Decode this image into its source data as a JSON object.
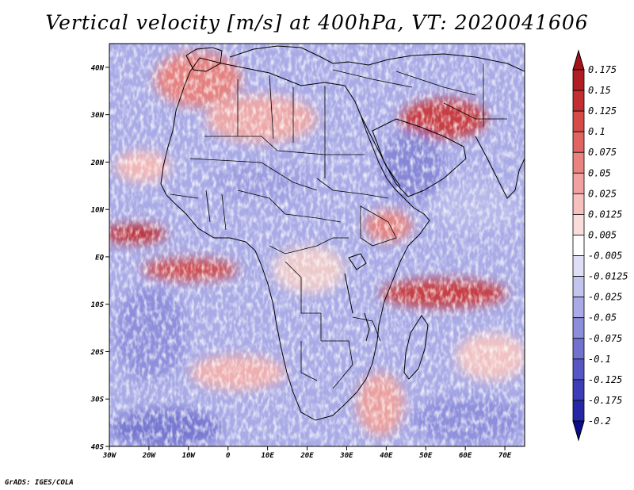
{
  "title": "Vertical velocity [m/s] at 400hPa, VT: 2020041606",
  "credit": "GrADS: IGES/COLA",
  "map": {
    "lat_labels": [
      "40N",
      "30N",
      "20N",
      "10N",
      "EQ",
      "10S",
      "20S",
      "30S",
      "40S"
    ],
    "lat_values": [
      40,
      30,
      20,
      10,
      0,
      -10,
      -20,
      -30,
      -40
    ],
    "lon_labels": [
      "30W",
      "20W",
      "10W",
      "0",
      "10E",
      "20E",
      "30E",
      "40E",
      "50E",
      "60E",
      "70E"
    ],
    "lon_values": [
      -30,
      -20,
      -10,
      0,
      10,
      20,
      30,
      40,
      50,
      60,
      70
    ],
    "lon_range": [
      -30,
      75
    ],
    "lat_range": [
      -40,
      45
    ]
  },
  "colorbar": {
    "labels": [
      "0.175",
      "0.15",
      "0.125",
      "0.1",
      "0.075",
      "0.05",
      "0.025",
      "0.0125",
      "0.005",
      "-0.005",
      "-0.0125",
      "-0.025",
      "-0.05",
      "-0.075",
      "-0.1",
      "-0.125",
      "-0.175",
      "-0.2"
    ],
    "colors": [
      "#b01e24",
      "#c32e30",
      "#d64a47",
      "#e16461",
      "#ea8380",
      "#f1a2a0",
      "#f6c0be",
      "#fadcdb",
      "#ffffff",
      "#dedff6",
      "#c4c5ee",
      "#a9aae6",
      "#8d8edb",
      "#7172d0",
      "#5657c4",
      "#3c3db7",
      "#2627a6",
      "#141696"
    ],
    "top_color": "#a0141a",
    "bottom_color": "#0c0c88"
  }
}
